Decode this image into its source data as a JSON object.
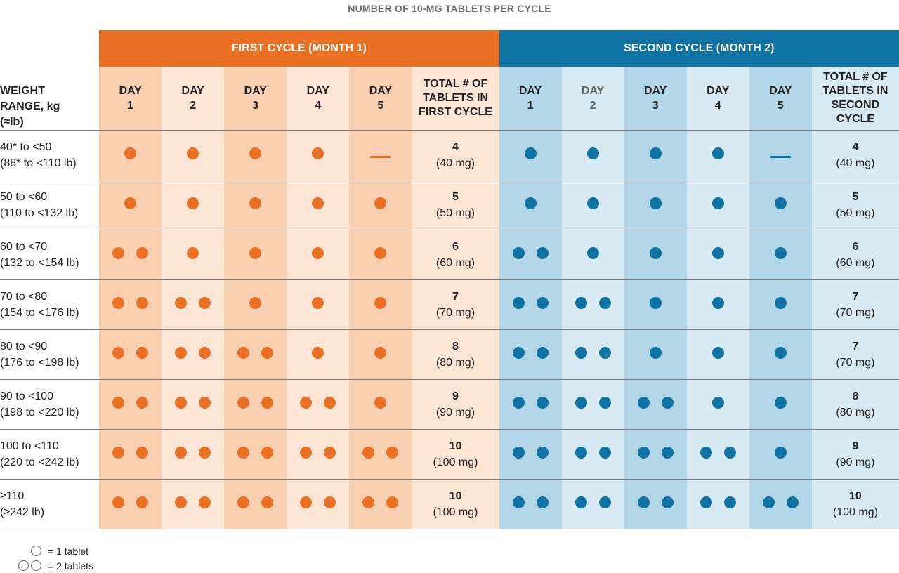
{
  "title": "NUMBER OF 10-MG TABLETS PER CYCLE",
  "cycles": {
    "first": "FIRST CYCLE (MONTH 1)",
    "second": "SECOND CYCLE (MONTH 2)"
  },
  "headers": {
    "weight": [
      "WEIGHT",
      "RANGE, kg",
      "(≈lb)"
    ],
    "day_word": "DAY",
    "days": [
      "1",
      "2",
      "3",
      "4",
      "5"
    ],
    "total_first": [
      "TOTAL # OF",
      "TABLETS IN",
      "FIRST CYCLE"
    ],
    "total_second": [
      "TOTAL # OF",
      "TABLETS IN",
      "SECOND",
      "CYCLE"
    ]
  },
  "rows": [
    {
      "kg": "40* to <50",
      "lb": "(88* to <110 lb)",
      "first": [
        1,
        1,
        1,
        1,
        0
      ],
      "first_total": "4",
      "first_mg": "(40 mg)",
      "second": [
        1,
        1,
        1,
        1,
        0
      ],
      "second_total": "4",
      "second_mg": "(40 mg)"
    },
    {
      "kg": "50 to <60",
      "lb": "(110 to <132 lb)",
      "first": [
        1,
        1,
        1,
        1,
        1
      ],
      "first_total": "5",
      "first_mg": "(50 mg)",
      "second": [
        1,
        1,
        1,
        1,
        1
      ],
      "second_total": "5",
      "second_mg": "(50 mg)"
    },
    {
      "kg": "60 to <70",
      "lb": "(132 to <154 lb)",
      "first": [
        2,
        1,
        1,
        1,
        1
      ],
      "first_total": "6",
      "first_mg": "(60 mg)",
      "second": [
        2,
        1,
        1,
        1,
        1
      ],
      "second_total": "6",
      "second_mg": "(60 mg)"
    },
    {
      "kg": "70 to <80",
      "lb": "(154 to <176 lb)",
      "first": [
        2,
        2,
        1,
        1,
        1
      ],
      "first_total": "7",
      "first_mg": "(70 mg)",
      "second": [
        2,
        2,
        1,
        1,
        1
      ],
      "second_total": "7",
      "second_mg": "(70 mg)"
    },
    {
      "kg": "80 to <90",
      "lb": "(176 to <198 lb)",
      "first": [
        2,
        2,
        2,
        1,
        1
      ],
      "first_total": "8",
      "first_mg": "(80 mg)",
      "second": [
        2,
        2,
        1,
        1,
        1
      ],
      "second_total": "7",
      "second_mg": "(70 mg)"
    },
    {
      "kg": "90 to <100",
      "lb": "(198 to <220 lb)",
      "first": [
        2,
        2,
        2,
        2,
        1
      ],
      "first_total": "9",
      "first_mg": "(90 mg)",
      "second": [
        2,
        2,
        2,
        1,
        1
      ],
      "second_total": "8",
      "second_mg": "(80 mg)"
    },
    {
      "kg": "100 to <110",
      "lb": "(220 to <242 lb)",
      "first": [
        2,
        2,
        2,
        2,
        2
      ],
      "first_total": "10",
      "first_mg": "(100 mg)",
      "second": [
        2,
        2,
        2,
        2,
        1
      ],
      "second_total": "9",
      "second_mg": "(90 mg)"
    },
    {
      "kg": "≥110",
      "lb": "(≥242 lb)",
      "first": [
        2,
        2,
        2,
        2,
        2
      ],
      "first_total": "10",
      "first_mg": "(100 mg)",
      "second": [
        2,
        2,
        2,
        2,
        2
      ],
      "second_total": "10",
      "second_mg": "(100 mg)"
    }
  ],
  "legend": {
    "one": "= 1 tablet",
    "two": "= 2 tablets"
  },
  "colors": {
    "orange": "#ea7124",
    "blue": "#0e73a3"
  }
}
